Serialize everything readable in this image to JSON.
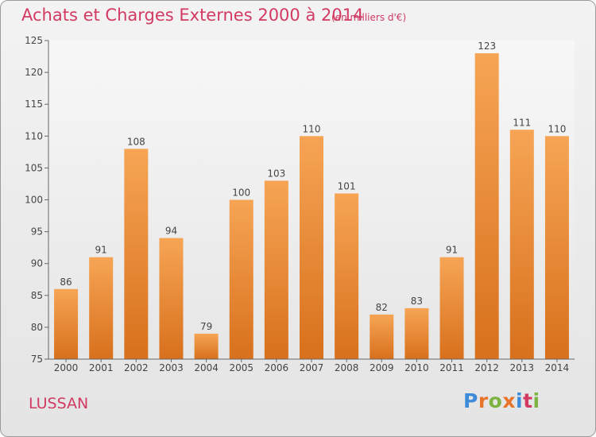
{
  "title": "Achats et Charges Externes 2000 à 2014",
  "subtitle": "(en milliers d'€)",
  "commune": "LUSSAN",
  "logo": {
    "text": "Proxiti",
    "colors": [
      "#3d8bd9",
      "#e8732a",
      "#7cb342",
      "#e8732a",
      "#3d8bd9",
      "#d23a62",
      "#7cb342"
    ]
  },
  "colors": {
    "title": "#d23a62",
    "bar_light": "#f6a555",
    "bar_dark": "#d8701c",
    "axis": "#555555"
  },
  "chart_data": {
    "type": "bar",
    "title": "Achats et Charges Externes 2000 à 2014",
    "subtitle": "(en milliers d'€)",
    "xlabel": "",
    "ylabel": "",
    "categories": [
      "2000",
      "2001",
      "2002",
      "2003",
      "2004",
      "2005",
      "2006",
      "2007",
      "2008",
      "2009",
      "2010",
      "2011",
      "2012",
      "2013",
      "2014"
    ],
    "values": [
      86,
      91,
      108,
      94,
      79,
      100,
      103,
      110,
      101,
      82,
      83,
      91,
      123,
      111,
      110
    ],
    "ylim": [
      75,
      125
    ],
    "yticks": [
      75,
      80,
      85,
      90,
      95,
      100,
      105,
      110,
      115,
      120,
      125
    ],
    "grid": false,
    "data_labels": true
  }
}
